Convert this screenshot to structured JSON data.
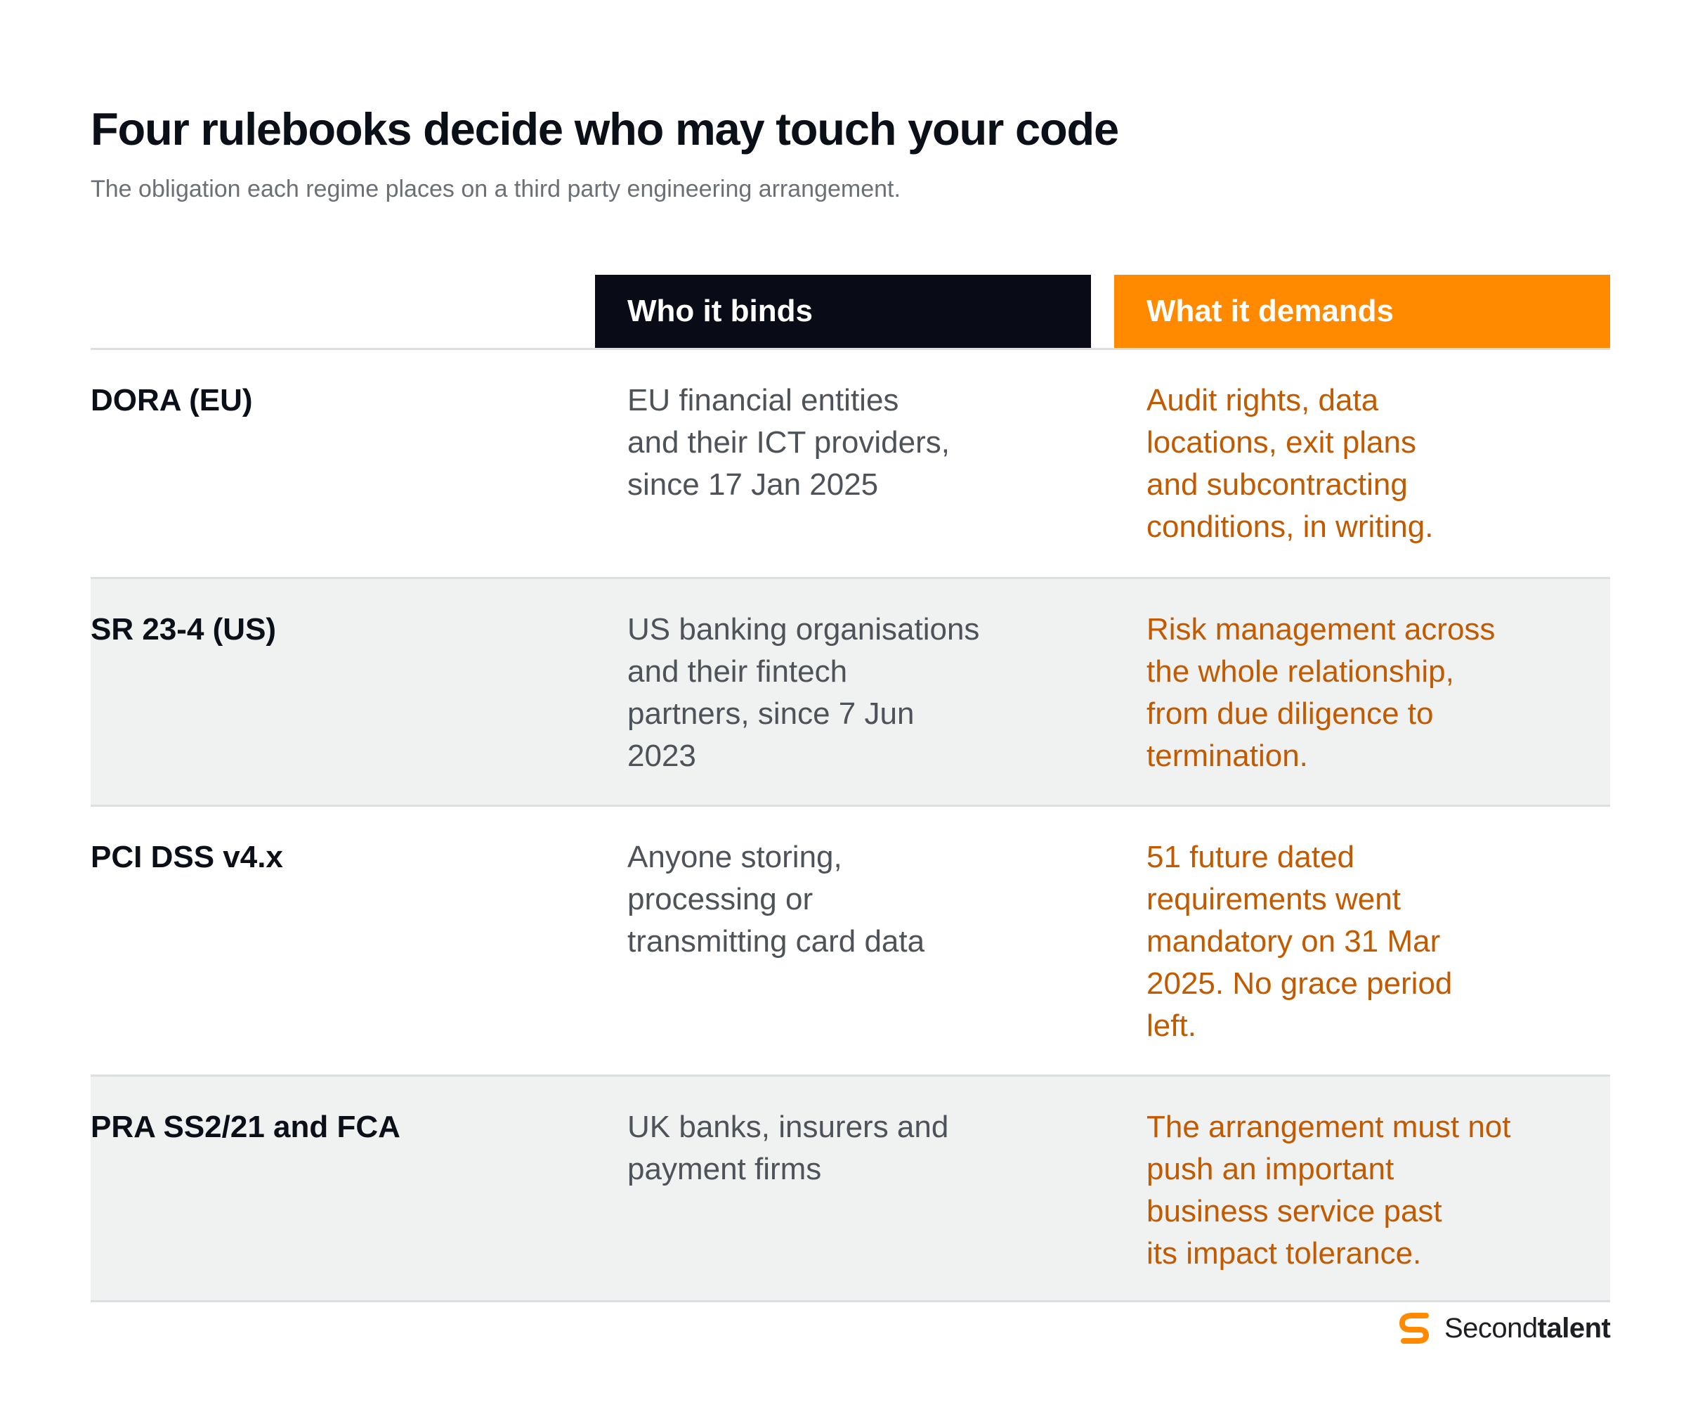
{
  "header": {
    "title": "Four rulebooks decide who may touch your code",
    "subtitle": "The obligation each regime places on a third party engineering arrangement."
  },
  "columns": {
    "who": "Who it binds",
    "what": "What it demands"
  },
  "rows": [
    {
      "name": "DORA (EU)",
      "who_lines": [
        "EU financial entities",
        "and their ICT providers,",
        "since 17 Jan 2025"
      ],
      "what_lines": [
        "Audit rights, data",
        "locations, exit plans",
        "and subcontracting",
        "conditions, in writing."
      ]
    },
    {
      "name": "SR 23-4 (US)",
      "who_lines": [
        "US banking organisations",
        "and their fintech",
        "partners, since 7 Jun",
        "2023"
      ],
      "what_lines": [
        "Risk management across",
        "the whole relationship,",
        "from due diligence to",
        "termination."
      ]
    },
    {
      "name": "PCI DSS v4.x",
      "who_lines": [
        "Anyone storing,",
        "processing or",
        "transmitting card data"
      ],
      "what_lines": [
        "51 future dated",
        "requirements went",
        "mandatory on 31 Mar",
        "2025. No grace period",
        "left."
      ]
    },
    {
      "name": "PRA SS2/21 and FCA",
      "who_lines": [
        "UK banks, insurers and",
        "payment firms"
      ],
      "what_lines": [
        "The arrangement must not",
        "push an important",
        "business service past",
        "its impact tolerance."
      ]
    }
  ],
  "brand": {
    "name_regular": "Second",
    "name_bold": "talent",
    "logo_icon": "secondtalent-s-icon",
    "accent": "#ff8a00"
  },
  "colors": {
    "header_dark": "#090c16",
    "header_orange": "#ff8a00",
    "demand_text": "#c25b00",
    "row_alt": "#f0f1f1"
  }
}
